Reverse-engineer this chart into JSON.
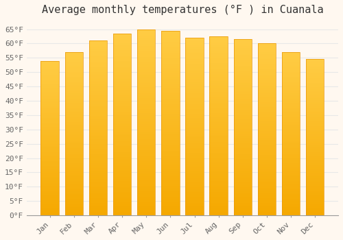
{
  "title": "Average monthly temperatures (°F ) in Cuanala",
  "months": [
    "Jan",
    "Feb",
    "Mar",
    "Apr",
    "May",
    "Jun",
    "Jul",
    "Aug",
    "Sep",
    "Oct",
    "Nov",
    "Dec"
  ],
  "values": [
    54.0,
    57.0,
    61.0,
    63.5,
    65.0,
    64.5,
    62.0,
    62.5,
    61.5,
    60.0,
    57.0,
    54.5
  ],
  "bar_color_top": "#FFCC44",
  "bar_color_bottom": "#F5A800",
  "background_color": "#FFF8F0",
  "grid_color": "#E8E8E8",
  "ylim": [
    0,
    68
  ],
  "yticks": [
    0,
    5,
    10,
    15,
    20,
    25,
    30,
    35,
    40,
    45,
    50,
    55,
    60,
    65
  ],
  "title_fontsize": 11,
  "tick_fontsize": 8,
  "font_family": "monospace"
}
